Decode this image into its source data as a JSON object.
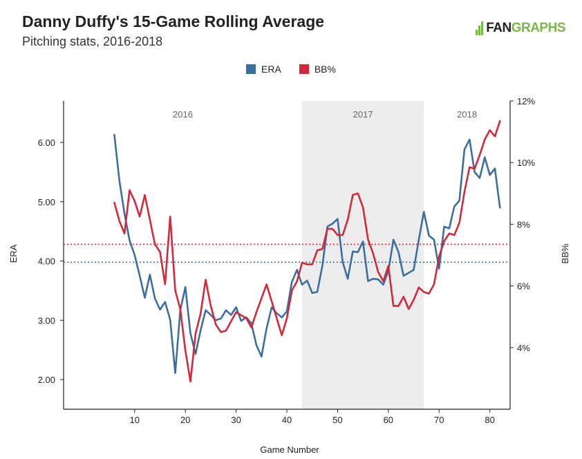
{
  "title": "Danny Duffy's 15-Game Rolling Average",
  "subtitle": "Pitching stats, 2016-2018",
  "logo": {
    "prefix": "FAN",
    "suffix": "GRAPHS"
  },
  "colors": {
    "era": "#3b6e9e",
    "bb": "#d1293a",
    "shade": "#ececec"
  },
  "chart_data": {
    "type": "line",
    "xlabel": "Game Number",
    "ylabel": "ERA",
    "y2label": "BB%",
    "xlim": [
      -4,
      84
    ],
    "ylim": [
      1.5,
      6.7
    ],
    "y2lim": [
      0.02,
      0.12
    ],
    "x_ticks": [
      10,
      20,
      30,
      40,
      50,
      60,
      70,
      80
    ],
    "y_ticks": [
      2.0,
      3.0,
      4.0,
      5.0,
      6.0
    ],
    "y_tick_labels": [
      "2.00",
      "3.00",
      "4.00",
      "5.00",
      "6.00"
    ],
    "y2_ticks": [
      0.04,
      0.06,
      0.08,
      0.1,
      0.12
    ],
    "y2_tick_labels": [
      "4%",
      "6%",
      "8%",
      "10%",
      "12%"
    ],
    "legend_position": "top-center",
    "season_bands": [
      {
        "label": "2016",
        "start": -4,
        "end": 43,
        "shaded": false
      },
      {
        "label": "2017",
        "start": 43,
        "end": 67,
        "shaded": true
      },
      {
        "label": "2018",
        "start": 67,
        "end": 84,
        "shaded": false
      }
    ],
    "reference_lines": [
      {
        "series": "ERA",
        "value": 3.98,
        "axis": "left"
      },
      {
        "series": "BB%",
        "value": 0.0735,
        "axis": "right"
      }
    ],
    "series": [
      {
        "name": "ERA",
        "axis": "left",
        "x": [
          6,
          7,
          8,
          9,
          10,
          11,
          12,
          13,
          14,
          15,
          16,
          17,
          18,
          19,
          20,
          21,
          22,
          23,
          24,
          25,
          26,
          27,
          28,
          29,
          30,
          31,
          32,
          33,
          34,
          35,
          36,
          37,
          38,
          39,
          40,
          41,
          42,
          43,
          44,
          45,
          46,
          47,
          48,
          49,
          50,
          51,
          52,
          53,
          54,
          55,
          56,
          57,
          58,
          59,
          60,
          61,
          62,
          63,
          64,
          65,
          66,
          67,
          68,
          69,
          70,
          71,
          72,
          73,
          74,
          75,
          76,
          77,
          78,
          79,
          80,
          81,
          82
        ],
        "values": [
          6.13,
          5.35,
          4.8,
          4.35,
          4.1,
          3.75,
          3.38,
          3.77,
          3.37,
          3.18,
          3.31,
          3.01,
          2.11,
          3.17,
          3.56,
          2.78,
          2.43,
          2.83,
          3.17,
          3.09,
          3.0,
          3.03,
          3.17,
          3.09,
          3.22,
          2.99,
          3.05,
          2.95,
          2.58,
          2.39,
          2.86,
          3.22,
          3.12,
          3.05,
          3.15,
          3.65,
          3.85,
          3.6,
          3.67,
          3.46,
          3.48,
          3.92,
          4.58,
          4.63,
          4.71,
          3.98,
          3.7,
          4.16,
          4.15,
          4.33,
          3.66,
          3.7,
          3.69,
          3.6,
          3.83,
          4.36,
          4.15,
          3.75,
          3.8,
          3.85,
          4.36,
          4.83,
          4.43,
          4.36,
          3.87,
          4.58,
          4.55,
          4.92,
          5.02,
          5.88,
          6.05,
          5.5,
          5.4,
          5.75,
          5.45,
          5.56,
          4.9
        ]
      },
      {
        "name": "BB%",
        "axis": "right",
        "x": [
          6,
          7,
          8,
          9,
          10,
          11,
          12,
          13,
          14,
          15,
          16,
          17,
          18,
          19,
          20,
          21,
          22,
          23,
          24,
          25,
          26,
          27,
          28,
          29,
          30,
          31,
          32,
          33,
          34,
          35,
          36,
          37,
          38,
          39,
          40,
          41,
          42,
          43,
          44,
          45,
          46,
          47,
          48,
          49,
          50,
          51,
          52,
          53,
          54,
          55,
          56,
          57,
          58,
          59,
          60,
          61,
          62,
          63,
          64,
          65,
          66,
          67,
          68,
          69,
          70,
          71,
          72,
          73,
          74,
          75,
          76,
          77,
          78,
          79,
          80,
          81,
          82
        ],
        "values": [
          0.087,
          0.081,
          0.077,
          0.091,
          0.0875,
          0.0825,
          0.0895,
          0.0815,
          0.0735,
          0.071,
          0.0605,
          0.0825,
          0.0585,
          0.0525,
          0.039,
          0.029,
          0.0445,
          0.051,
          0.062,
          0.0535,
          0.0475,
          0.045,
          0.0455,
          0.0485,
          0.0515,
          0.0505,
          0.0495,
          0.0465,
          0.0515,
          0.056,
          0.0605,
          0.055,
          0.0495,
          0.044,
          0.0495,
          0.0585,
          0.0615,
          0.0675,
          0.067,
          0.067,
          0.0715,
          0.072,
          0.0785,
          0.0785,
          0.0765,
          0.0765,
          0.0815,
          0.0895,
          0.09,
          0.0855,
          0.075,
          0.0705,
          0.0645,
          0.0615,
          0.0665,
          0.0535,
          0.0535,
          0.0565,
          0.0525,
          0.0555,
          0.0595,
          0.058,
          0.0575,
          0.0605,
          0.0695,
          0.0745,
          0.077,
          0.0765,
          0.0805,
          0.0905,
          0.0985,
          0.098,
          0.1025,
          0.1075,
          0.1105,
          0.1085,
          0.1135
        ]
      }
    ]
  }
}
